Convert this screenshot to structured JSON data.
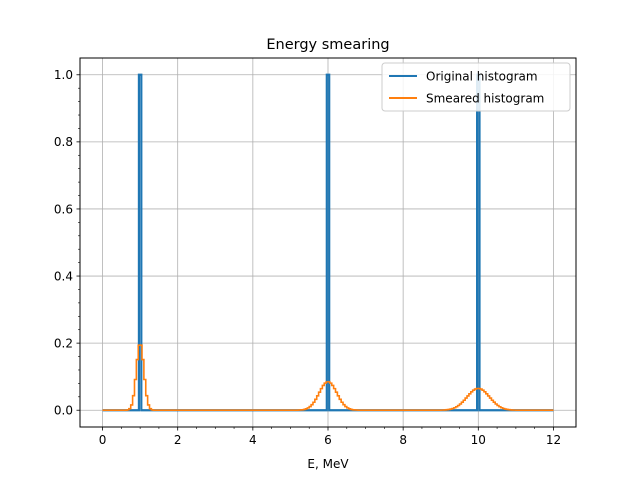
{
  "chart_data": {
    "type": "line",
    "title": "Energy smearing",
    "xlabel": "E, MeV",
    "ylabel": "",
    "xlim": [
      -0.6,
      12.6
    ],
    "ylim": [
      -0.05,
      1.05
    ],
    "xticks": [
      0,
      2,
      4,
      6,
      8,
      10,
      12
    ],
    "yticks": [
      0.0,
      0.2,
      0.4,
      0.6,
      0.8,
      1.0
    ],
    "xtick_labels": [
      "0",
      "2",
      "4",
      "6",
      "8",
      "10",
      "12"
    ],
    "ytick_labels": [
      "0.0",
      "0.2",
      "0.4",
      "0.6",
      "0.8",
      "1.0"
    ],
    "grid": true,
    "legend_position": "top-right",
    "colors": {
      "original": "#1f77b4",
      "smeared": "#ff7f0e"
    },
    "series": [
      {
        "name": "Original histogram",
        "style": "step",
        "x_start": 0.0,
        "x_end": 12.0,
        "peaks": [
          {
            "x": 1.0,
            "y": 1.0
          },
          {
            "x": 6.0,
            "y": 1.0
          },
          {
            "x": 10.0,
            "y": 1.0
          }
        ]
      },
      {
        "name": "Smeared histogram",
        "style": "step",
        "x_start": 0.0,
        "x_end": 12.0,
        "peaks": [
          {
            "x": 1.0,
            "y": 0.2,
            "sigma": 0.1
          },
          {
            "x": 6.0,
            "y": 0.085,
            "sigma": 0.235
          },
          {
            "x": 10.0,
            "y": 0.065,
            "sigma": 0.3
          }
        ]
      }
    ]
  }
}
